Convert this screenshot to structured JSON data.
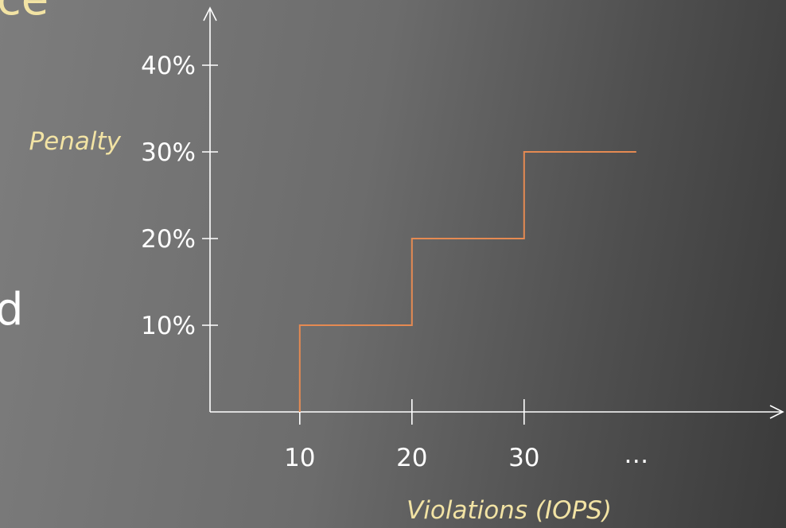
{
  "slide": {
    "fragment_top": "ce",
    "fragment_mid": "d"
  },
  "chart_data": {
    "type": "line",
    "step": true,
    "xlabel": "Violations (IOPS)",
    "ylabel": "Penalty",
    "x_ticks": [
      "10",
      "20",
      "30",
      "..."
    ],
    "x_tick_values": [
      10,
      20,
      30,
      40
    ],
    "y_ticks": [
      "10%",
      "20%",
      "30%",
      "40%"
    ],
    "y_tick_values": [
      10,
      20,
      30,
      40
    ],
    "xlim": [
      2,
      48
    ],
    "ylim": [
      0,
      40
    ],
    "series": [
      {
        "points": [
          [
            10,
            0
          ],
          [
            10,
            10
          ],
          [
            20,
            10
          ],
          [
            20,
            20
          ],
          [
            30,
            20
          ],
          [
            30,
            30
          ],
          [
            40,
            30
          ]
        ],
        "color": "#e58a52"
      }
    ],
    "axis_color": "#ffffff",
    "grid": false
  }
}
